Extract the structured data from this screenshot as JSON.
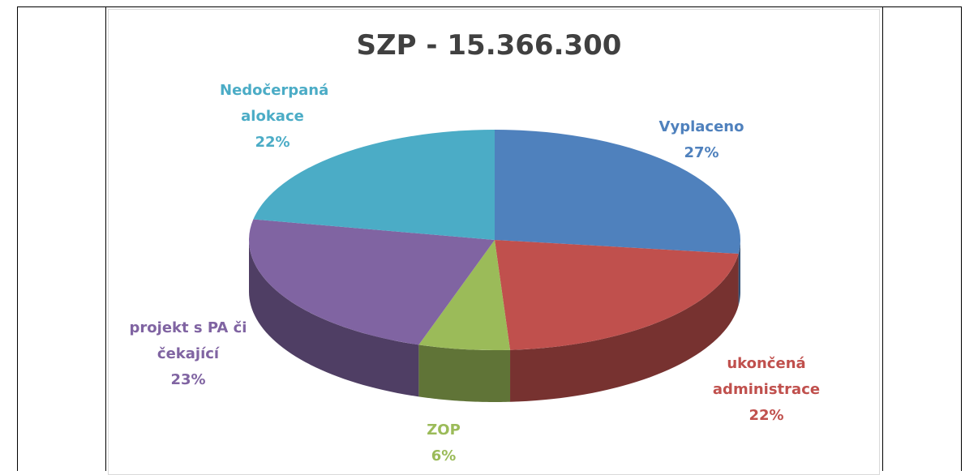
{
  "chart_data": {
    "type": "pie",
    "title": "SZP - 15.366.300",
    "categories": [
      "Vyplaceno",
      "ukončená administrace",
      "ZOP",
      "projekt s PA či čekající",
      "Nedočerpaná alokace"
    ],
    "values": [
      27,
      22,
      6,
      23,
      22
    ],
    "value_labels": [
      "27%",
      "22%",
      "6%",
      "23%",
      "22%"
    ],
    "colors": [
      "#4f81bd",
      "#c0504d",
      "#9bbb59",
      "#8064a2",
      "#4bacc6"
    ]
  }
}
